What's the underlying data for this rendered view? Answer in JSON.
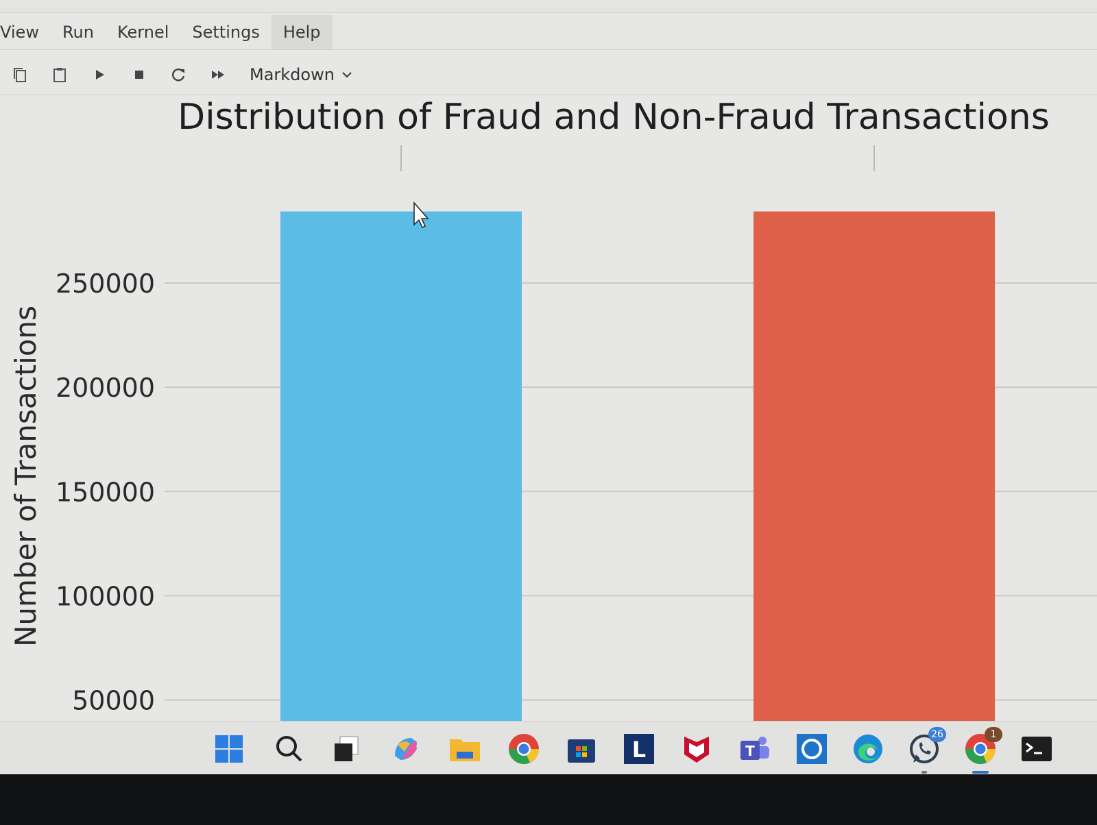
{
  "menu": {
    "items": [
      {
        "id": "view",
        "label": "View"
      },
      {
        "id": "run",
        "label": "Run"
      },
      {
        "id": "kernel",
        "label": "Kernel"
      },
      {
        "id": "settings",
        "label": "Settings"
      },
      {
        "id": "help",
        "label": "Help"
      }
    ]
  },
  "toolbar": {
    "buttons": [
      {
        "id": "copy",
        "icon": "copy-icon"
      },
      {
        "id": "paste",
        "icon": "paste-icon"
      },
      {
        "id": "run",
        "icon": "play-icon"
      },
      {
        "id": "stop",
        "icon": "stop-icon"
      },
      {
        "id": "restart",
        "icon": "restart-icon"
      },
      {
        "id": "run-all",
        "icon": "fast-forward-icon"
      }
    ],
    "cell_type": "Markdown"
  },
  "chart_data": {
    "type": "bar",
    "title": "Distribution of Fraud and Non-Fraud Transactions",
    "xlabel": "",
    "ylabel": "Number of Transactions",
    "categories": [
      "",
      ""
    ],
    "values": [
      284315,
      284315
    ],
    "colors": [
      "#5bbde6",
      "#e0614a"
    ],
    "yticks": [
      50000,
      100000,
      150000,
      200000,
      250000
    ],
    "ylim": [
      40000,
      320000
    ],
    "grid": true
  },
  "taskbar": {
    "icons": [
      {
        "id": "start",
        "icon": "windows-start-icon"
      },
      {
        "id": "search",
        "icon": "search-icon"
      },
      {
        "id": "taskview",
        "icon": "task-view-icon"
      },
      {
        "id": "copilot",
        "icon": "copilot-icon"
      },
      {
        "id": "explorer",
        "icon": "file-explorer-icon"
      },
      {
        "id": "chrome",
        "icon": "chrome-icon"
      },
      {
        "id": "store",
        "icon": "store-icon"
      },
      {
        "id": "lapp",
        "icon": "l-app-icon",
        "letter": "L"
      },
      {
        "id": "mcafee",
        "icon": "mcafee-icon"
      },
      {
        "id": "teams",
        "icon": "teams-icon"
      },
      {
        "id": "cortana",
        "icon": "cortana-icon"
      },
      {
        "id": "edge",
        "icon": "edge-icon"
      },
      {
        "id": "whatsapp",
        "icon": "whatsapp-icon",
        "badge": "26"
      },
      {
        "id": "chrome2",
        "icon": "chrome-icon",
        "badge": "1"
      },
      {
        "id": "terminal",
        "icon": "terminal-icon"
      }
    ]
  }
}
